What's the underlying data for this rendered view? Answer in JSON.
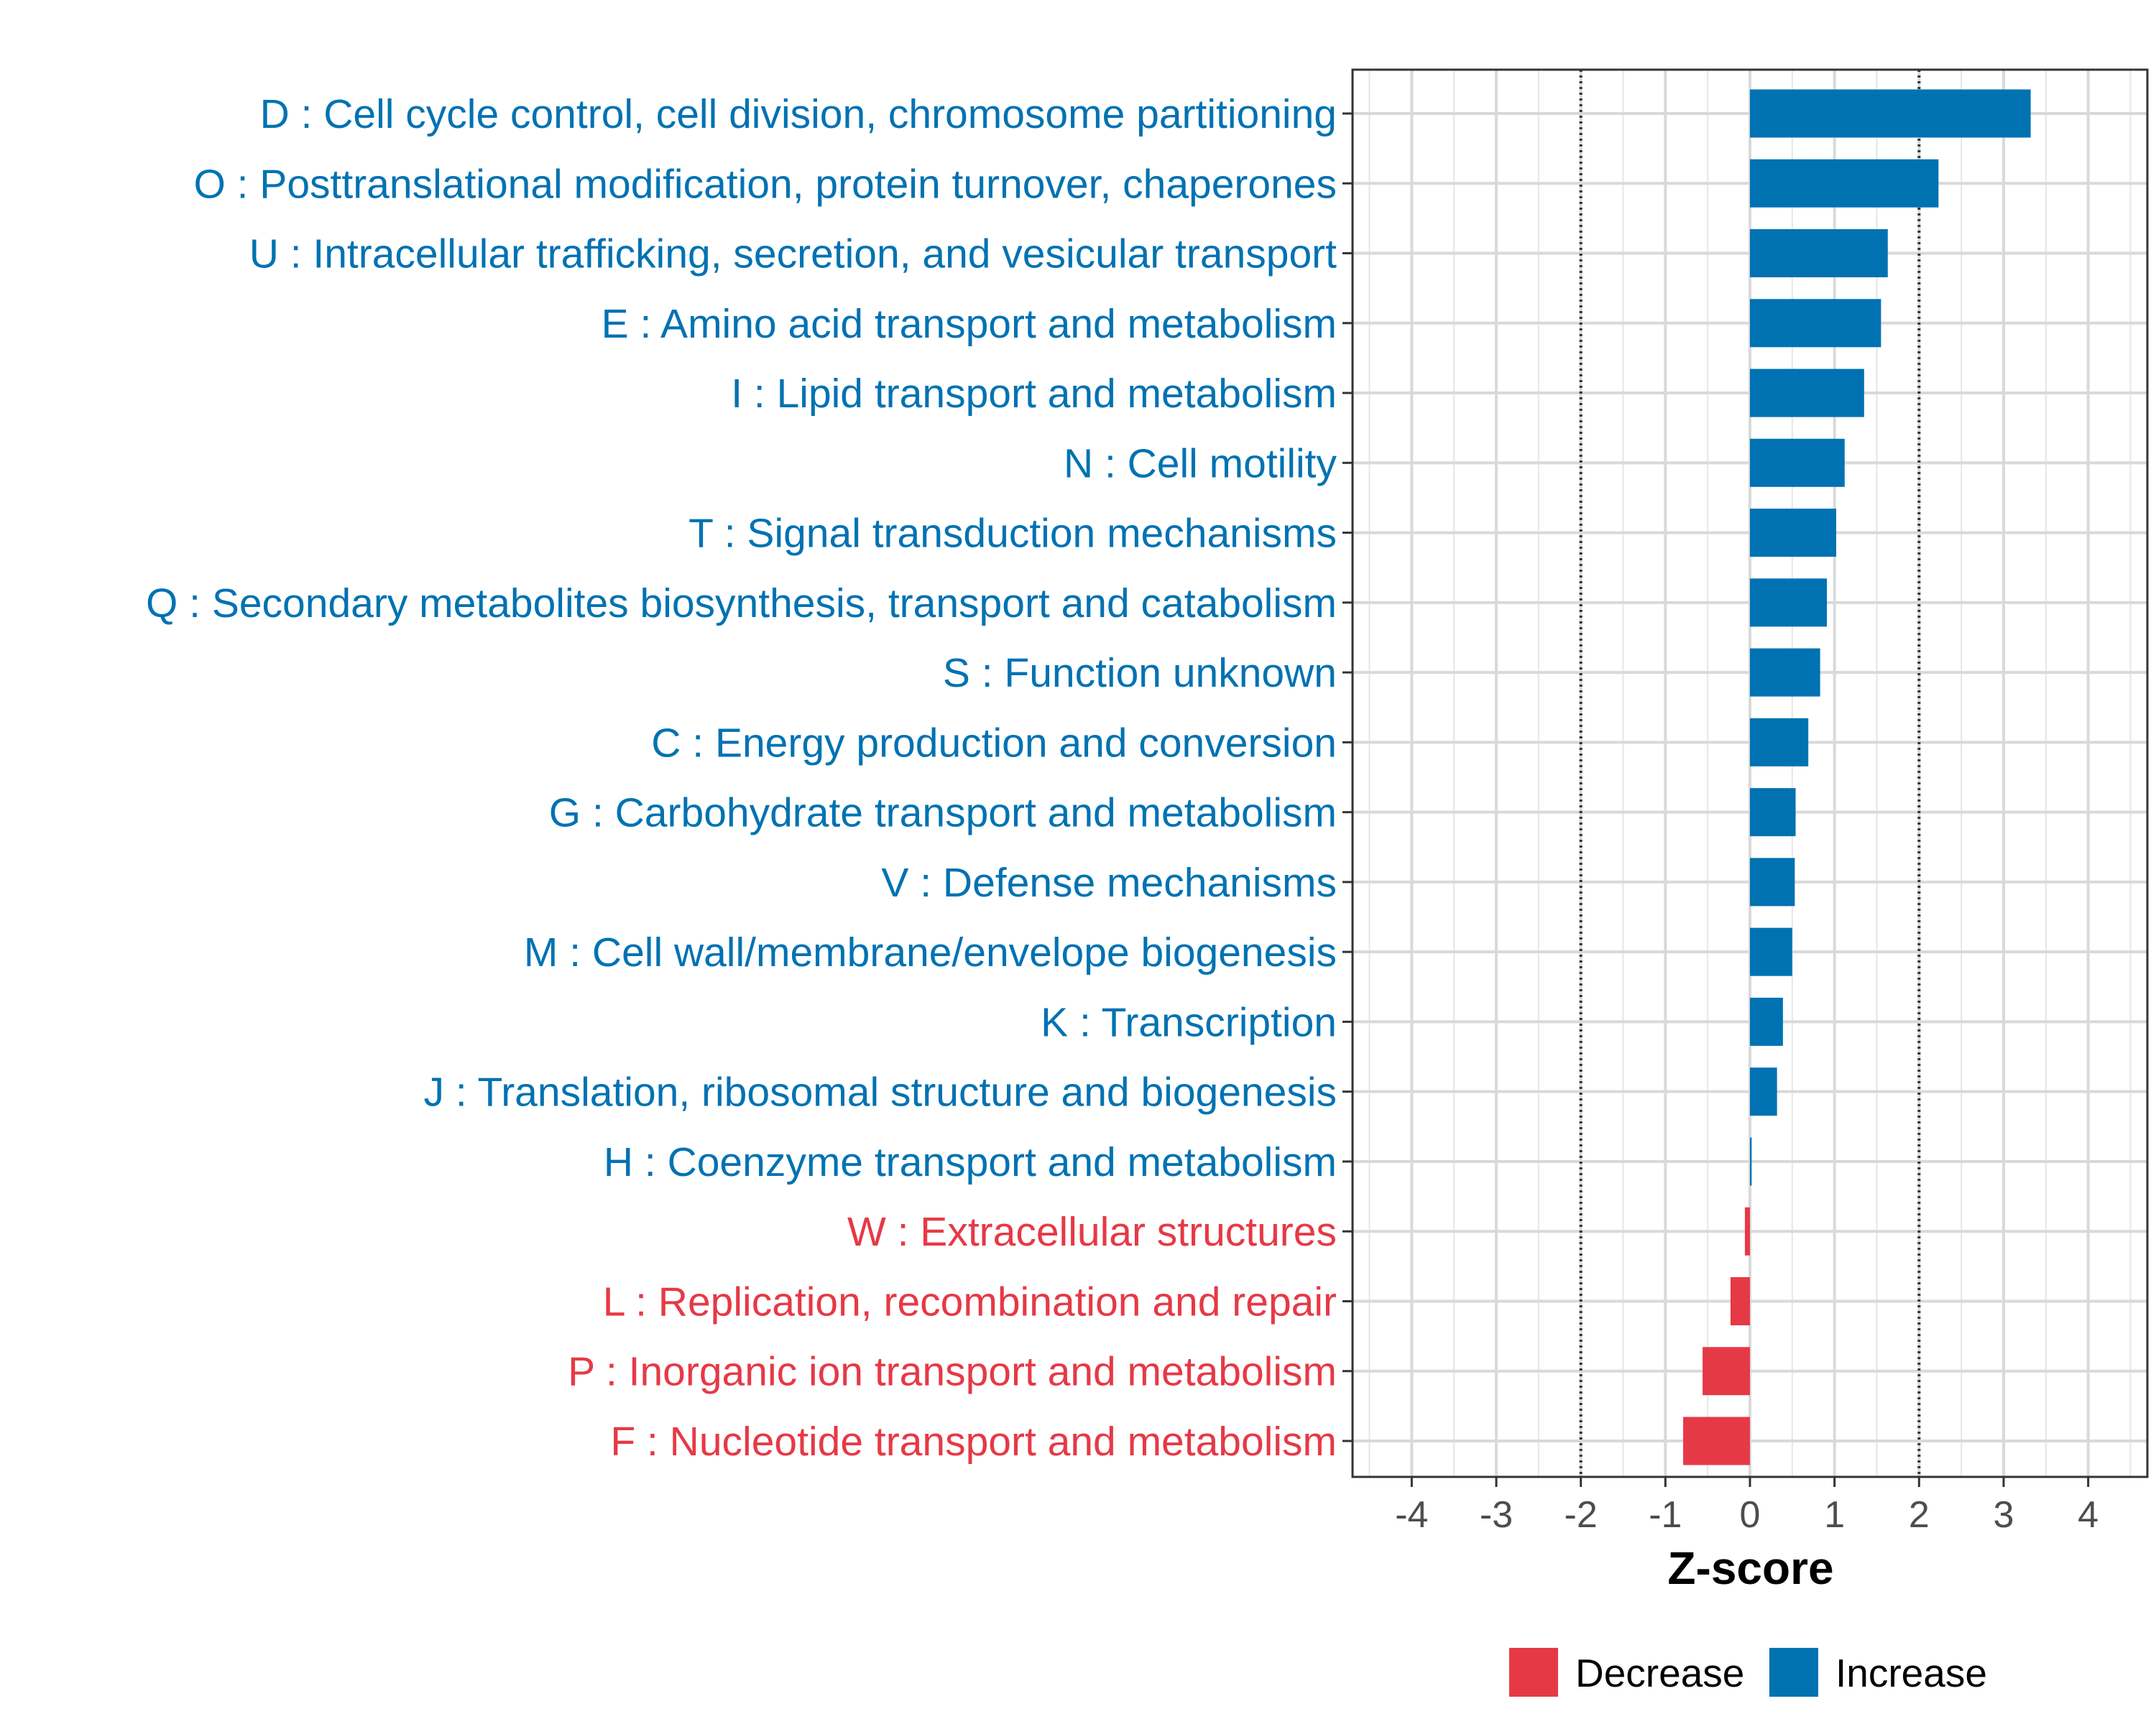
{
  "chart_data": {
    "type": "bar",
    "orientation": "horizontal",
    "xlabel": "Z-score",
    "xlim": [
      -4.7,
      4.7
    ],
    "xticks": [
      -4,
      -3,
      -2,
      -1,
      0,
      1,
      2,
      3,
      4
    ],
    "threshold_lines": [
      -2,
      2
    ],
    "categories": [
      "D : Cell cycle control, cell division, chromosome partitioning",
      "O : Posttranslational modification, protein turnover, chaperones",
      "U : Intracellular trafficking, secretion, and vesicular transport",
      "E : Amino acid transport and metabolism",
      "I : Lipid transport and metabolism",
      "N : Cell motility",
      "T : Signal transduction mechanisms",
      "Q : Secondary metabolites biosynthesis, transport and catabolism",
      "S : Function unknown",
      "C : Energy production and conversion",
      "G : Carbohydrate transport and metabolism",
      "V : Defense mechanisms",
      "M : Cell wall/membrane/envelope biogenesis",
      "K : Transcription",
      "J : Translation, ribosomal structure and biogenesis",
      "H : Coenzyme transport and metabolism",
      "W : Extracellular structures",
      "L : Replication, recombination and repair",
      "P : Inorganic ion transport and metabolism",
      "F : Nucleotide transport and metabolism"
    ],
    "values": [
      3.32,
      2.23,
      1.63,
      1.55,
      1.35,
      1.12,
      1.02,
      0.91,
      0.83,
      0.69,
      0.54,
      0.53,
      0.5,
      0.39,
      0.32,
      0.02,
      -0.06,
      -0.23,
      -0.56,
      -0.79
    ],
    "groups": [
      "Increase",
      "Increase",
      "Increase",
      "Increase",
      "Increase",
      "Increase",
      "Increase",
      "Increase",
      "Increase",
      "Increase",
      "Increase",
      "Increase",
      "Increase",
      "Increase",
      "Increase",
      "Increase",
      "Decrease",
      "Decrease",
      "Decrease",
      "Decrease"
    ],
    "legend": [
      {
        "label": "Decrease",
        "color": "#e63946"
      },
      {
        "label": "Increase",
        "color": "#0072b2"
      }
    ],
    "legend_position": "bottom",
    "grid": true
  }
}
